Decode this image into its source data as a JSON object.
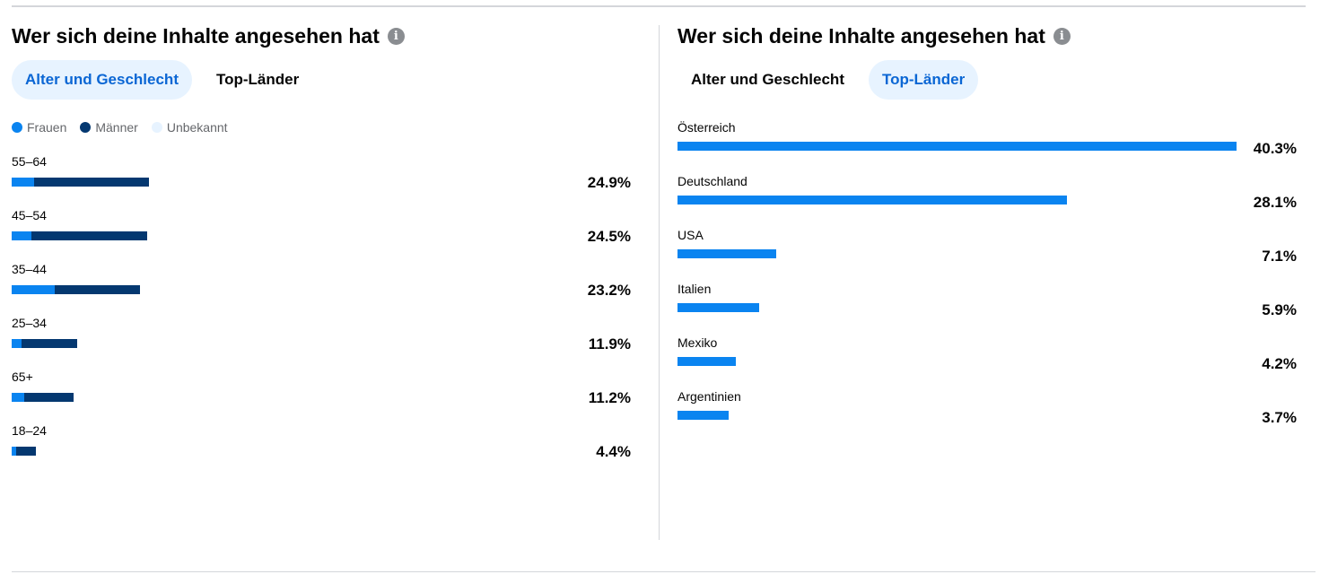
{
  "colors": {
    "women": "#0a84f0",
    "men": "#043870",
    "unknown": "#e7f3ff",
    "country": "#0a84f0"
  },
  "left": {
    "title": "Wer sich deine Inhalte angesehen hat",
    "info_icon": "i",
    "tabs": [
      {
        "label": "Alter und Geschlecht",
        "active": true
      },
      {
        "label": "Top-Länder",
        "active": false
      }
    ],
    "legend": [
      {
        "label": "Frauen"
      },
      {
        "label": "Männer"
      },
      {
        "label": "Unbekannt"
      }
    ],
    "chart_data": {
      "type": "bar",
      "categories": [
        "55–64",
        "45–54",
        "35–44",
        "25–34",
        "65+",
        "18–24"
      ],
      "series": [
        {
          "name": "Frauen",
          "values": [
            4.1,
            3.6,
            7.8,
            1.8,
            2.3,
            0.8
          ]
        },
        {
          "name": "Männer",
          "values": [
            20.8,
            20.9,
            15.4,
            10.1,
            8.9,
            3.6
          ]
        }
      ],
      "totals": [
        "24.9%",
        "24.5%",
        "23.2%",
        "11.9%",
        "11.2%",
        "4.4%"
      ],
      "total_values": [
        24.9,
        24.5,
        23.2,
        11.9,
        11.2,
        4.4
      ]
    }
  },
  "right": {
    "title": "Wer sich deine Inhalte angesehen hat",
    "info_icon": "i",
    "tabs": [
      {
        "label": "Alter und Geschlecht",
        "active": false
      },
      {
        "label": "Top-Länder",
        "active": true
      }
    ],
    "chart_data": {
      "type": "bar",
      "categories": [
        "Österreich",
        "Deutschland",
        "USA",
        "Italien",
        "Mexiko",
        "Argentinien"
      ],
      "values": [
        40.3,
        28.1,
        7.1,
        5.9,
        4.2,
        3.7
      ],
      "labels": [
        "40.3%",
        "28.1%",
        "7.1%",
        "5.9%",
        "4.2%",
        "3.7%"
      ]
    }
  }
}
